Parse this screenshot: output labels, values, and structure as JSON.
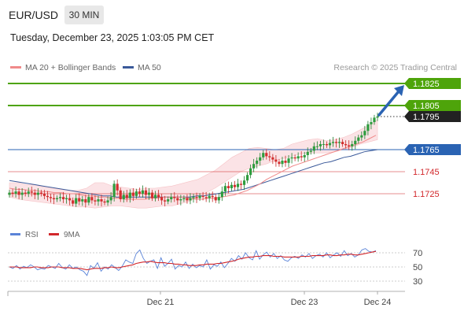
{
  "header": {
    "pair": "EUR/USD",
    "timeframe": "30 MIN"
  },
  "datetime": "Tuesday, December 23, 2025 1:03:05 PM CET",
  "legend": {
    "ma20": "MA 20 + Bollinger Bands",
    "ma50": "MA 50",
    "credit": "Research © 2025 Trading Central"
  },
  "rsi_legend": {
    "rsi": "RSI",
    "ma": "9MA"
  },
  "colors": {
    "green_level": "#4ea40a",
    "blue_level": "#2a63b3",
    "red_level": "#d2272b",
    "current_price_bg": "#222222",
    "ma20": "#f08a8a",
    "ma50": "#3b5a9a",
    "bollinger_fill": "#fadadd",
    "arrow": "#2a63b3",
    "rsi": "#5b84d8",
    "rsi_ma": "#d2272b"
  },
  "chart_data": [
    {
      "type": "candlestick",
      "x": [
        "Dec 21",
        "Dec 23",
        "Dec 24"
      ],
      "price_levels": [
        {
          "value": 1.1825,
          "label": "1.1825",
          "kind": "resistance-target"
        },
        {
          "value": 1.1805,
          "label": "1.1805",
          "kind": "resistance-target"
        },
        {
          "value": 1.1795,
          "label": "1.1795",
          "kind": "current-price"
        },
        {
          "value": 1.1765,
          "label": "1.1765",
          "kind": "pivot"
        },
        {
          "value": 1.1745,
          "label": "1.1745",
          "kind": "support"
        },
        {
          "value": 1.1725,
          "label": "1.1725",
          "kind": "support"
        }
      ],
      "closes": [
        1.1726,
        1.1725,
        1.1727,
        1.1724,
        1.1726,
        1.1725,
        1.1727,
        1.1726,
        1.1724,
        1.1726,
        1.1725,
        1.1723,
        1.1722,
        1.1721,
        1.172,
        1.1721,
        1.1722,
        1.172,
        1.1721,
        1.1719,
        1.1716,
        1.1721,
        1.1718,
        1.172,
        1.1717,
        1.1722,
        1.1719,
        1.1718,
        1.172,
        1.1718,
        1.1717,
        1.1719,
        1.1722,
        1.1734,
        1.1728,
        1.172,
        1.1724,
        1.1721,
        1.1726,
        1.1723,
        1.1727,
        1.1725,
        1.1728,
        1.1724,
        1.1726,
        1.1721,
        1.1724,
        1.1722,
        1.1719,
        1.1718,
        1.172,
        1.1722,
        1.1721,
        1.1719,
        1.172,
        1.1721,
        1.1719,
        1.1721,
        1.1722,
        1.1721,
        1.1723,
        1.1722,
        1.1721,
        1.1723,
        1.1722,
        1.1719,
        1.1722,
        1.1727,
        1.1732,
        1.173,
        1.1733,
        1.1731,
        1.1734,
        1.1733,
        1.1737,
        1.1742,
        1.1748,
        1.1752,
        1.1755,
        1.1758,
        1.1762,
        1.1759,
        1.1758,
        1.1756,
        1.1754,
        1.1752,
        1.1755,
        1.1753,
        1.1757,
        1.1758,
        1.1757,
        1.1759,
        1.1758,
        1.176,
        1.1763,
        1.1764,
        1.1768,
        1.1768,
        1.177,
        1.177,
        1.1769,
        1.1771,
        1.1772,
        1.1771,
        1.1772,
        1.177,
        1.1769,
        1.1768,
        1.177,
        1.1773,
        1.1776,
        1.1778,
        1.1782,
        1.1788,
        1.179,
        1.1794,
        1.1795
      ],
      "ma20": [
        1.173,
        1.1729,
        1.1729,
        1.1728,
        1.1728,
        1.1727,
        1.1727,
        1.1726,
        1.1726,
        1.1725,
        1.1725,
        1.1724,
        1.1723,
        1.1723,
        1.1722,
        1.1722,
        1.1721,
        1.1721,
        1.172,
        1.172,
        1.172,
        1.172,
        1.1721,
        1.1721,
        1.1722,
        1.1722,
        1.1722,
        1.1722,
        1.1721,
        1.172,
        1.172,
        1.1721,
        1.1721,
        1.1722,
        1.1723,
        1.1724,
        1.1726,
        1.1728,
        1.1731,
        1.1734,
        1.1738,
        1.1741,
        1.1744,
        1.1747,
        1.175,
        1.1752,
        1.1754,
        1.1756,
        1.1758,
        1.176,
        1.1762,
        1.1764,
        1.1766,
        1.1768,
        1.177,
        1.1772,
        1.1775,
        1.1778
      ],
      "ma50": [
        1.1737,
        1.1736,
        1.1735,
        1.1734,
        1.1733,
        1.1732,
        1.1731,
        1.173,
        1.1729,
        1.1728,
        1.1727,
        1.1726,
        1.1725,
        1.1724,
        1.1723,
        1.1723,
        1.1722,
        1.1722,
        1.1722,
        1.1722,
        1.1722,
        1.1722,
        1.1722,
        1.1722,
        1.1722,
        1.1722,
        1.1722,
        1.1722,
        1.1723,
        1.1723,
        1.1724,
        1.1725,
        1.1726,
        1.1727,
        1.1728,
        1.1729,
        1.1731,
        1.1733,
        1.1735,
        1.1737,
        1.1739,
        1.1741,
        1.1743,
        1.1745,
        1.1747,
        1.1749,
        1.1751,
        1.1753,
        1.1754,
        1.1756,
        1.1758,
        1.1759,
        1.1761,
        1.1763,
        1.1764,
        1.1765
      ],
      "bollinger_upper": [
        1.1735,
        1.1735,
        1.1733,
        1.1733,
        1.1731,
        1.173,
        1.1729,
        1.1728,
        1.1728,
        1.173,
        1.1735,
        1.1735,
        1.1732,
        1.1731,
        1.173,
        1.1729,
        1.173,
        1.173,
        1.1731,
        1.1732,
        1.1734,
        1.1736,
        1.1738,
        1.1742,
        1.1746,
        1.1752,
        1.1758,
        1.1762,
        1.1766,
        1.1767,
        1.1766,
        1.1765,
        1.1766,
        1.177,
        1.1772,
        1.1774,
        1.1775,
        1.1773,
        1.1774,
        1.1776,
        1.1779,
        1.1783,
        1.1787,
        1.1792
      ],
      "bollinger_lower": [
        1.1722,
        1.172,
        1.1719,
        1.1718,
        1.1717,
        1.1716,
        1.1715,
        1.1714,
        1.1713,
        1.1713,
        1.1712,
        1.1713,
        1.1714,
        1.1714,
        1.1713,
        1.1712,
        1.1712,
        1.1713,
        1.1714,
        1.1714,
        1.1716,
        1.1718,
        1.1722,
        1.1726,
        1.173,
        1.1735,
        1.174,
        1.1745,
        1.1748,
        1.175,
        1.1752,
        1.1755,
        1.1757,
        1.1759,
        1.1761,
        1.1762,
        1.1762,
        1.1762,
        1.1763,
        1.1765,
        1.1767,
        1.177,
        1.1772,
        1.1774
      ]
    },
    {
      "type": "line",
      "name": "RSI panel",
      "y_ticks": [
        70,
        50,
        30
      ],
      "ylim": [
        20,
        85
      ],
      "series": [
        {
          "name": "RSI",
          "values": [
            50,
            48,
            52,
            47,
            51,
            49,
            53,
            50,
            46,
            48,
            47,
            52,
            50,
            48,
            55,
            49,
            47,
            53,
            48,
            50,
            46,
            44,
            38,
            52,
            48,
            56,
            44,
            50,
            47,
            53,
            49,
            45,
            51,
            60,
            57,
            55,
            69,
            74,
            62,
            55,
            58,
            60,
            48,
            63,
            51,
            55,
            61,
            47,
            52,
            50,
            57,
            48,
            54,
            49,
            52,
            50,
            60,
            47,
            53,
            51,
            57,
            49,
            55,
            62,
            58,
            66,
            61,
            70,
            63,
            60,
            73,
            61,
            67,
            71,
            64,
            69,
            62,
            66,
            60,
            58,
            63,
            65,
            62,
            67,
            64,
            69,
            62,
            66,
            68,
            64,
            70,
            63,
            67,
            70,
            65,
            73,
            66,
            69,
            64,
            67,
            74,
            76,
            72,
            71,
            73
          ]
        },
        {
          "name": "9MA",
          "values": [
            50,
            50,
            50,
            49,
            49,
            49,
            49,
            50,
            50,
            49,
            49,
            49,
            50,
            50,
            50,
            49,
            49,
            49,
            48,
            48,
            48,
            47,
            46,
            47,
            48,
            48,
            48,
            49,
            49,
            50,
            49,
            49,
            50,
            51,
            52,
            53,
            55,
            56,
            57,
            57,
            58,
            57,
            56,
            56,
            56,
            55,
            55,
            54,
            54,
            53,
            53,
            52,
            52,
            52,
            53,
            53,
            54,
            54,
            54,
            55,
            55,
            56,
            57,
            58,
            59,
            61,
            62,
            63,
            64,
            64,
            65,
            65,
            66,
            66,
            66,
            65,
            65,
            65,
            64,
            64,
            64,
            64,
            64,
            65,
            65,
            65,
            66,
            66,
            66,
            66,
            67,
            67,
            66,
            66,
            67,
            67,
            68,
            68,
            67,
            67,
            68,
            69,
            70,
            71,
            72
          ]
        }
      ]
    }
  ],
  "x_axis": {
    "ticks": [
      "Dec 21",
      "Dec 23",
      "Dec 24"
    ]
  }
}
